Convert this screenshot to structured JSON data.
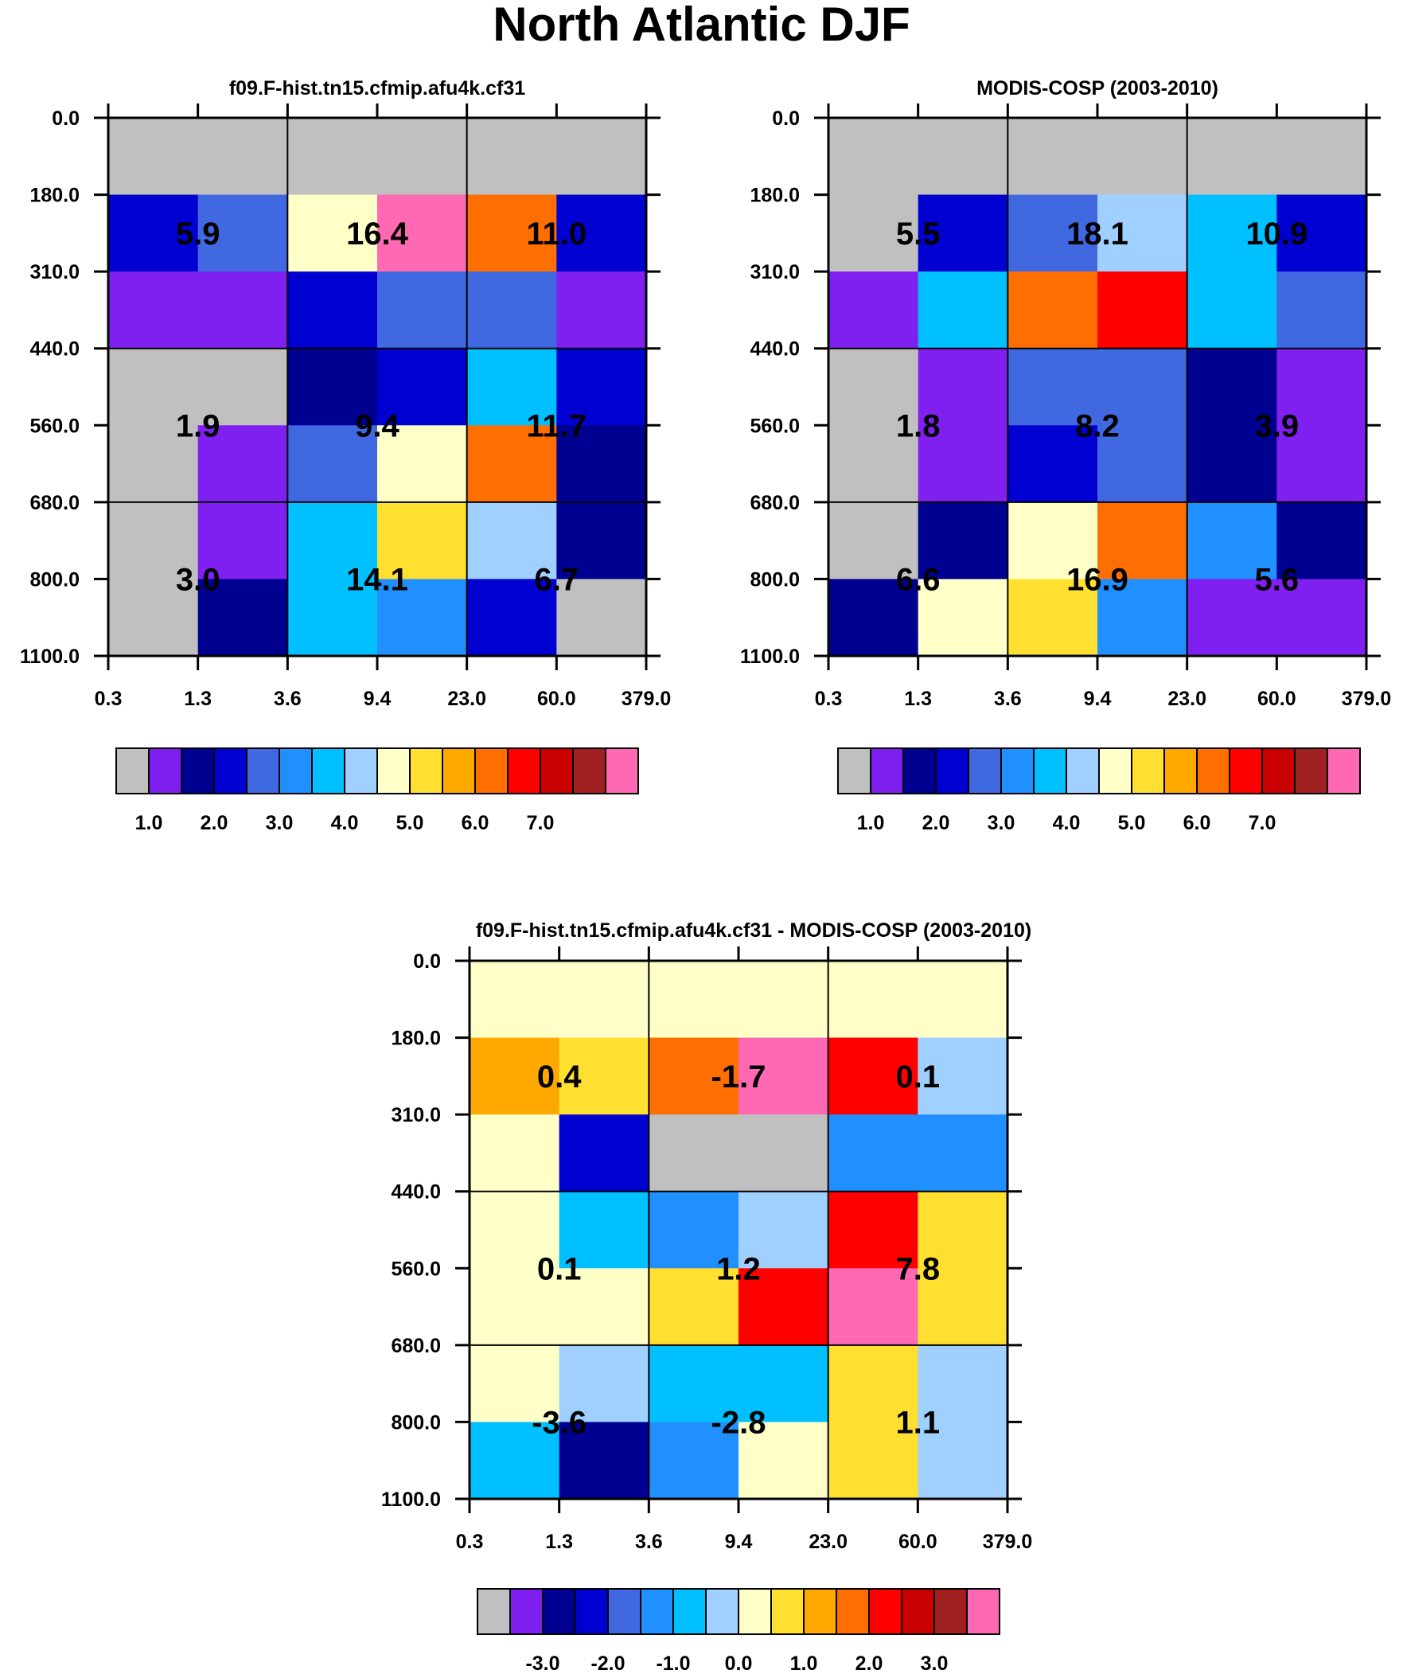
{
  "title": "North Atlantic DJF",
  "palettes": {
    "abs": [
      "#c0c0c0",
      "#8020f0",
      "#000090",
      "#0000d0",
      "#4068e0",
      "#2090ff",
      "#00c0ff",
      "#a0d0ff",
      "#ffffc8",
      "#ffe030",
      "#ffa800",
      "#ff6e00",
      "#ff0000",
      "#c80000",
      "#a02020",
      "#ff69b4"
    ],
    "diff": [
      "#c0c0c0",
      "#8020f0",
      "#000090",
      "#0000d0",
      "#4068e0",
      "#2090ff",
      "#00c0ff",
      "#a0d0ff",
      "#ffffc8",
      "#ffe030",
      "#ffa800",
      "#ff6e00",
      "#ff0000",
      "#c80000",
      "#a02020",
      "#ff69b4"
    ]
  },
  "chart_data": [
    {
      "type": "heatmap",
      "title": "f09.F-hist.tn15.cfmip.afu4k.cf31",
      "x_ticks": [
        "0.3",
        "1.3",
        "3.6",
        "9.4",
        "23.0",
        "60.0",
        "379.0"
      ],
      "y_ticks": [
        "0.0",
        "180.0",
        "310.0",
        "440.0",
        "560.0",
        "680.0",
        "800.0",
        "1100.0"
      ],
      "cells": [
        [
          0,
          0,
          0,
          0,
          0,
          0
        ],
        [
          3,
          4,
          8,
          15,
          11,
          3
        ],
        [
          1,
          1,
          3,
          4,
          4,
          1
        ],
        [
          0,
          0,
          2,
          3,
          6,
          3
        ],
        [
          0,
          1,
          4,
          8,
          11,
          2
        ],
        [
          0,
          1,
          6,
          9,
          7,
          2
        ],
        [
          0,
          2,
          6,
          5,
          3,
          0
        ]
      ],
      "labels": [
        {
          "text": "5.9",
          "row": 1.5,
          "col": 1
        },
        {
          "text": "16.4",
          "row": 1.5,
          "col": 3
        },
        {
          "text": "11.0",
          "row": 1.5,
          "col": 5
        },
        {
          "text": "1.9",
          "row": 4,
          "col": 1
        },
        {
          "text": "9.4",
          "row": 4,
          "col": 3
        },
        {
          "text": "11.7",
          "row": 4,
          "col": 5
        },
        {
          "text": "3.0",
          "row": 6,
          "col": 1
        },
        {
          "text": "14.1",
          "row": 6,
          "col": 3
        },
        {
          "text": "6.7",
          "row": 6,
          "col": 5
        }
      ],
      "colorbar_labels": [
        "1.0",
        "2.0",
        "3.0",
        "4.0",
        "5.0",
        "6.0",
        "7.0"
      ],
      "colorbar_label_start": 1,
      "colorbar_label_step": 2
    },
    {
      "type": "heatmap",
      "title": "MODIS-COSP (2003-2010)",
      "x_ticks": [
        "0.3",
        "1.3",
        "3.6",
        "9.4",
        "23.0",
        "60.0",
        "379.0"
      ],
      "y_ticks": [
        "0.0",
        "180.0",
        "310.0",
        "440.0",
        "560.0",
        "680.0",
        "800.0",
        "1100.0"
      ],
      "cells": [
        [
          0,
          0,
          0,
          0,
          0,
          0
        ],
        [
          0,
          3,
          4,
          7,
          6,
          3
        ],
        [
          1,
          6,
          11,
          12,
          6,
          4
        ],
        [
          0,
          1,
          4,
          4,
          2,
          1
        ],
        [
          0,
          1,
          3,
          4,
          2,
          1
        ],
        [
          0,
          2,
          8,
          11,
          5,
          2
        ],
        [
          2,
          8,
          9,
          5,
          1,
          1
        ]
      ],
      "labels": [
        {
          "text": "5.5",
          "row": 1.5,
          "col": 1
        },
        {
          "text": "18.1",
          "row": 1.5,
          "col": 3
        },
        {
          "text": "10.9",
          "row": 1.5,
          "col": 5
        },
        {
          "text": "1.8",
          "row": 4,
          "col": 1
        },
        {
          "text": "8.2",
          "row": 4,
          "col": 3
        },
        {
          "text": "3.9",
          "row": 4,
          "col": 5
        },
        {
          "text": "6.6",
          "row": 6,
          "col": 1
        },
        {
          "text": "16.9",
          "row": 6,
          "col": 3
        },
        {
          "text": "5.6",
          "row": 6,
          "col": 5
        }
      ],
      "colorbar_labels": [
        "1.0",
        "2.0",
        "3.0",
        "4.0",
        "5.0",
        "6.0",
        "7.0"
      ],
      "colorbar_label_start": 1,
      "colorbar_label_step": 2
    },
    {
      "type": "heatmap",
      "title": "f09.F-hist.tn15.cfmip.afu4k.cf31 - MODIS-COSP (2003-2010)",
      "x_ticks": [
        "0.3",
        "1.3",
        "3.6",
        "9.4",
        "23.0",
        "60.0",
        "379.0"
      ],
      "y_ticks": [
        "0.0",
        "180.0",
        "310.0",
        "440.0",
        "560.0",
        "680.0",
        "800.0",
        "1100.0"
      ],
      "cells": [
        [
          8,
          8,
          8,
          8,
          8,
          8
        ],
        [
          10,
          9,
          11,
          15,
          12,
          7
        ],
        [
          8,
          3,
          0,
          0,
          5,
          5
        ],
        [
          8,
          6,
          5,
          7,
          12,
          9
        ],
        [
          8,
          8,
          9,
          12,
          15,
          9
        ],
        [
          8,
          7,
          6,
          6,
          9,
          7
        ],
        [
          6,
          2,
          5,
          8,
          9,
          7
        ]
      ],
      "labels": [
        {
          "text": "0.4",
          "row": 1.5,
          "col": 1
        },
        {
          "text": "-1.7",
          "row": 1.5,
          "col": 3
        },
        {
          "text": "0.1",
          "row": 1.5,
          "col": 5
        },
        {
          "text": "0.1",
          "row": 4,
          "col": 1
        },
        {
          "text": "1.2",
          "row": 4,
          "col": 3
        },
        {
          "text": "7.8",
          "row": 4,
          "col": 5
        },
        {
          "text": "-3.6",
          "row": 6,
          "col": 1
        },
        {
          "text": "-2.8",
          "row": 6,
          "col": 3
        },
        {
          "text": "1.1",
          "row": 6,
          "col": 5
        }
      ],
      "colorbar_labels": [
        "-3.0",
        "-2.0",
        "-1.0",
        "0.0",
        "1.0",
        "2.0",
        "3.0"
      ],
      "colorbar_label_start": 2,
      "colorbar_label_step": 2
    }
  ]
}
